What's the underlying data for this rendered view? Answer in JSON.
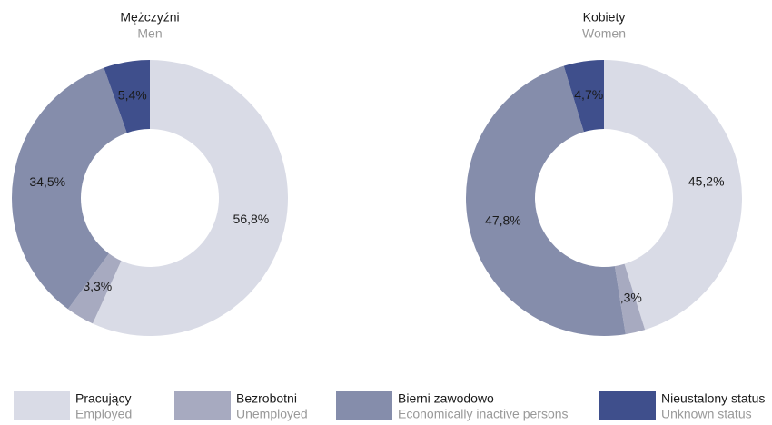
{
  "chart_data": [
    {
      "type": "pie",
      "title": "Mężczyźni",
      "subtitle": "Men",
      "categories": [
        "Pracujący",
        "Bezrobotni",
        "Bierni zawodowo",
        "Nieustalony status"
      ],
      "values": [
        56.8,
        3.3,
        34.5,
        5.4
      ],
      "value_labels": [
        "56,8%",
        "3,3%",
        "34,5%",
        "5,4%"
      ],
      "colors": [
        "#d9dbe6",
        "#a7aac0",
        "#858dab",
        "#3f4f8c"
      ]
    },
    {
      "type": "pie",
      "title": "Kobiety",
      "subtitle": "Women",
      "categories": [
        "Pracujący",
        "Bezrobotni",
        "Bierni zawodowo",
        "Nieustalony status"
      ],
      "values": [
        45.2,
        2.3,
        47.8,
        4.7
      ],
      "value_labels": [
        "45,2%",
        "2,3%",
        "47,8%",
        "4,7%"
      ],
      "colors": [
        "#d9dbe6",
        "#a7aac0",
        "#858dab",
        "#3f4f8c"
      ]
    }
  ],
  "legend": [
    {
      "label": "Pracujący",
      "sublabel": "Employed",
      "color": "#d9dbe6"
    },
    {
      "label": "Bezrobotni",
      "sublabel": "Unemployed",
      "color": "#a7aac0"
    },
    {
      "label": "Bierni zawodowo",
      "sublabel": "Economically inactive persons",
      "color": "#858dab"
    },
    {
      "label": "Nieustalony status",
      "sublabel": "Unknown status",
      "color": "#3f4f8c"
    }
  ]
}
